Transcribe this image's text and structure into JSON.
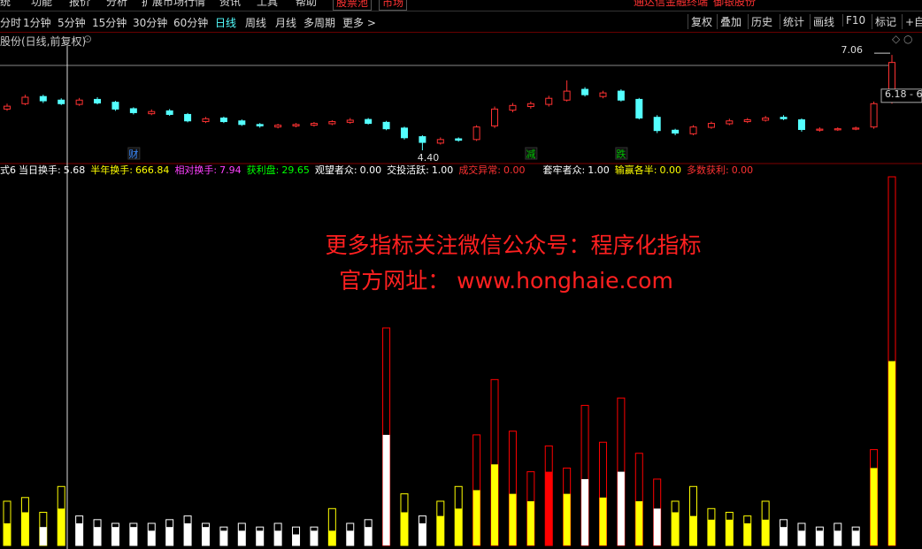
{
  "menu": [
    "统",
    "功能",
    "报价",
    "分析",
    "扩展市场行情",
    "资讯",
    "工具",
    "帮助",
    "股票池",
    "市场",
    "通达信金融终端",
    "御银股份"
  ],
  "periods": [
    "分时",
    "1分钟",
    "5分钟",
    "15分钟",
    "30分钟",
    "60分钟",
    "日线",
    "周线",
    "月线",
    "多周期",
    "更多 >"
  ],
  "buttons": [
    "复权",
    "叠加",
    "历史",
    "统计",
    "画线",
    "F10",
    "标记",
    "+自选"
  ],
  "stock_title": "股份(日线,前复权)",
  "watermark": [
    "更多指标关注微信公众号：程序化指标",
    "官方网址： www.honghaie.com"
  ],
  "chart_data": [
    {
      "type": "candlestick",
      "up_color": "#ff3232",
      "down_color": "#54ffff",
      "ylim": [
        4.03,
        7.31
      ],
      "open": [
        5.55,
        5.7,
        5.9,
        5.8,
        5.68,
        5.82,
        5.74,
        5.56,
        5.42,
        5.5,
        5.4,
        5.2,
        5.3,
        5.22,
        5.12,
        5.05,
        5.08,
        5.1,
        5.14,
        5.18,
        5.26,
        5.18,
        5.02,
        4.78,
        4.6,
        4.72,
        4.7,
        5.08,
        5.52,
        5.62,
        5.68,
        5.8,
        6.1,
        5.9,
        6.05,
        5.82,
        5.32,
        4.96,
        4.86,
        5.04,
        5.14,
        5.2,
        5.24,
        5.32,
        5.25,
        4.96,
        4.97,
        4.99,
        5.05,
        5.75
      ],
      "high": [
        5.7,
        5.95,
        5.95,
        5.85,
        5.86,
        5.88,
        5.78,
        5.6,
        5.54,
        5.55,
        5.44,
        5.33,
        5.34,
        5.26,
        5.16,
        5.14,
        5.16,
        5.19,
        5.24,
        5.3,
        5.3,
        5.22,
        5.06,
        4.82,
        4.76,
        4.76,
        5.1,
        5.62,
        5.72,
        5.76,
        5.92,
        6.35,
        6.16,
        6.06,
        6.1,
        5.86,
        5.38,
        5.0,
        5.1,
        5.2,
        5.28,
        5.3,
        5.36,
        5.38,
        5.29,
        5.04,
        5.04,
        5.06,
        5.76,
        7.06
      ],
      "low": [
        5.5,
        5.66,
        5.72,
        5.66,
        5.64,
        5.68,
        5.5,
        5.4,
        5.38,
        5.36,
        5.18,
        5.16,
        5.16,
        5.08,
        5.03,
        5.01,
        5.04,
        5.06,
        5.1,
        5.14,
        5.12,
        4.96,
        4.7,
        4.4,
        4.56,
        4.64,
        4.66,
        5.02,
        5.46,
        5.56,
        5.62,
        5.76,
        5.9,
        5.85,
        5.76,
        5.26,
        4.88,
        4.82,
        4.82,
        5.0,
        5.1,
        5.16,
        5.2,
        5.24,
        4.92,
        4.92,
        4.94,
        4.96,
        5.0,
        5.7
      ],
      "close": [
        5.63,
        5.88,
        5.78,
        5.7,
        5.8,
        5.72,
        5.55,
        5.45,
        5.48,
        5.4,
        5.22,
        5.28,
        5.2,
        5.12,
        5.08,
        5.1,
        5.12,
        5.15,
        5.2,
        5.24,
        5.15,
        5.0,
        4.75,
        4.62,
        4.7,
        4.68,
        5.05,
        5.55,
        5.65,
        5.7,
        5.85,
        6.05,
        5.95,
        6.0,
        5.8,
        5.3,
        4.95,
        4.88,
        5.05,
        5.15,
        5.22,
        5.25,
        5.3,
        5.28,
        4.98,
        4.99,
        5.0,
        5.02,
        5.7,
        6.85
      ],
      "annotations": [
        {
          "text": "7.06",
          "value": 7.06
        },
        {
          "text": "6.18 - 6",
          "value": 6.18
        },
        {
          "text": "4.40",
          "value": 4.4
        }
      ],
      "markers": [
        {
          "text": "财",
          "index": 7,
          "color": "#3c8cff"
        },
        {
          "text": "减",
          "index": 29,
          "color": "#00c000"
        },
        {
          "text": "跌",
          "index": 34,
          "color": "#00c000"
        }
      ]
    },
    {
      "type": "bar",
      "ylim": [
        0,
        100
      ],
      "header": [
        {
          "label": "式6",
          "color": "#ffffff"
        },
        {
          "label": "当日换手:",
          "value": "5.68",
          "color": "#ffffff"
        },
        {
          "label": "半年换手:",
          "value": "666.84",
          "color": "#ffff00"
        },
        {
          "label": "相对换手:",
          "value": "7.94",
          "color": "#ff40ff"
        },
        {
          "label": "获利盘:",
          "value": "29.65",
          "color": "#00ff00"
        },
        {
          "label": "观望者众:",
          "value": "0.00",
          "color": "#ffffff"
        },
        {
          "label": "交投活跃:",
          "value": "1.00",
          "color": "#ffffff"
        },
        {
          "label": "成交异常:",
          "value": "0.00",
          "color": "#ff3232"
        },
        {
          "label": "套牢者众:",
          "value": "1.00",
          "color": "#ffffff"
        },
        {
          "label": "输赢各半:",
          "value": "0.00",
          "color": "#ffff00"
        },
        {
          "label": "多数获利:",
          "value": "0.00",
          "color": "#ff3232"
        }
      ],
      "outer_values": [
        12,
        13,
        9,
        16,
        8,
        7,
        6,
        6,
        6,
        7,
        8,
        6,
        5,
        6,
        5,
        6,
        5,
        5,
        10,
        6,
        7,
        59,
        14,
        8,
        12,
        16,
        30,
        45,
        31,
        20,
        27,
        21,
        38,
        28,
        40,
        25,
        18,
        12,
        16,
        10,
        9,
        8,
        12,
        7,
        6,
        5,
        6,
        5,
        26,
        100
      ],
      "outer_colors": [
        "#ffff00",
        "#ffff00",
        "#ffff00",
        "#ffff00",
        "#ffffff",
        "#ffffff",
        "#ffffff",
        "#ffffff",
        "#ffffff",
        "#ffffff",
        "#ffffff",
        "#ffffff",
        "#ffffff",
        "#ffffff",
        "#ffffff",
        "#ffffff",
        "#ffffff",
        "#ffffff",
        "#ffff00",
        "#ffffff",
        "#ffffff",
        "#ff0000",
        "#ffff00",
        "#ffffff",
        "#ffff00",
        "#ffff00",
        "#ff0000",
        "#ff0000",
        "#ff0000",
        "#ff0000",
        "#ff0000",
        "#ff0000",
        "#ff0000",
        "#ff0000",
        "#ff0000",
        "#ff0000",
        "#ff0000",
        "#ffff00",
        "#ffff00",
        "#ffff00",
        "#ffff00",
        "#ffff00",
        "#ffff00",
        "#ffffff",
        "#ffffff",
        "#ffffff",
        "#ffffff",
        "#ffffff",
        "#ff0000",
        "#ff0000"
      ],
      "inner_values": [
        6,
        9,
        5,
        10,
        6,
        5,
        5,
        5,
        4,
        5,
        6,
        5,
        4,
        4,
        4,
        4,
        3,
        4,
        4,
        4,
        5,
        30,
        9,
        6,
        8,
        10,
        15,
        22,
        14,
        12,
        20,
        14,
        18,
        13,
        20,
        12,
        10,
        9,
        8,
        7,
        7,
        6,
        7,
        5,
        4,
        4,
        4,
        4,
        21,
        50
      ],
      "inner_colors": [
        "#ffff00",
        "#ffff00",
        "#ffffff",
        "#ffff00",
        "#ffffff",
        "#ffffff",
        "#ffffff",
        "#ffffff",
        "#ffffff",
        "#ffffff",
        "#ffffff",
        "#ffffff",
        "#ffffff",
        "#ffffff",
        "#ffffff",
        "#ffffff",
        "#ffffff",
        "#ffffff",
        "#ffff00",
        "#ffffff",
        "#ffffff",
        "#ffffff",
        "#ffff00",
        "#ffffff",
        "#ffff00",
        "#ffff00",
        "#ffff00",
        "#ffff00",
        "#ffff00",
        "#ffff00",
        "#ff0000",
        "#ffff00",
        "#ffffff",
        "#ffff00",
        "#ffffff",
        "#ffff00",
        "#ffffff",
        "#ffff00",
        "#ffff00",
        "#ffff00",
        "#ffff00",
        "#ffff00",
        "#ffff00",
        "#ffffff",
        "#ffffff",
        "#ffffff",
        "#ffffff",
        "#ffffff",
        "#ffff00",
        "#ffff00"
      ]
    }
  ]
}
